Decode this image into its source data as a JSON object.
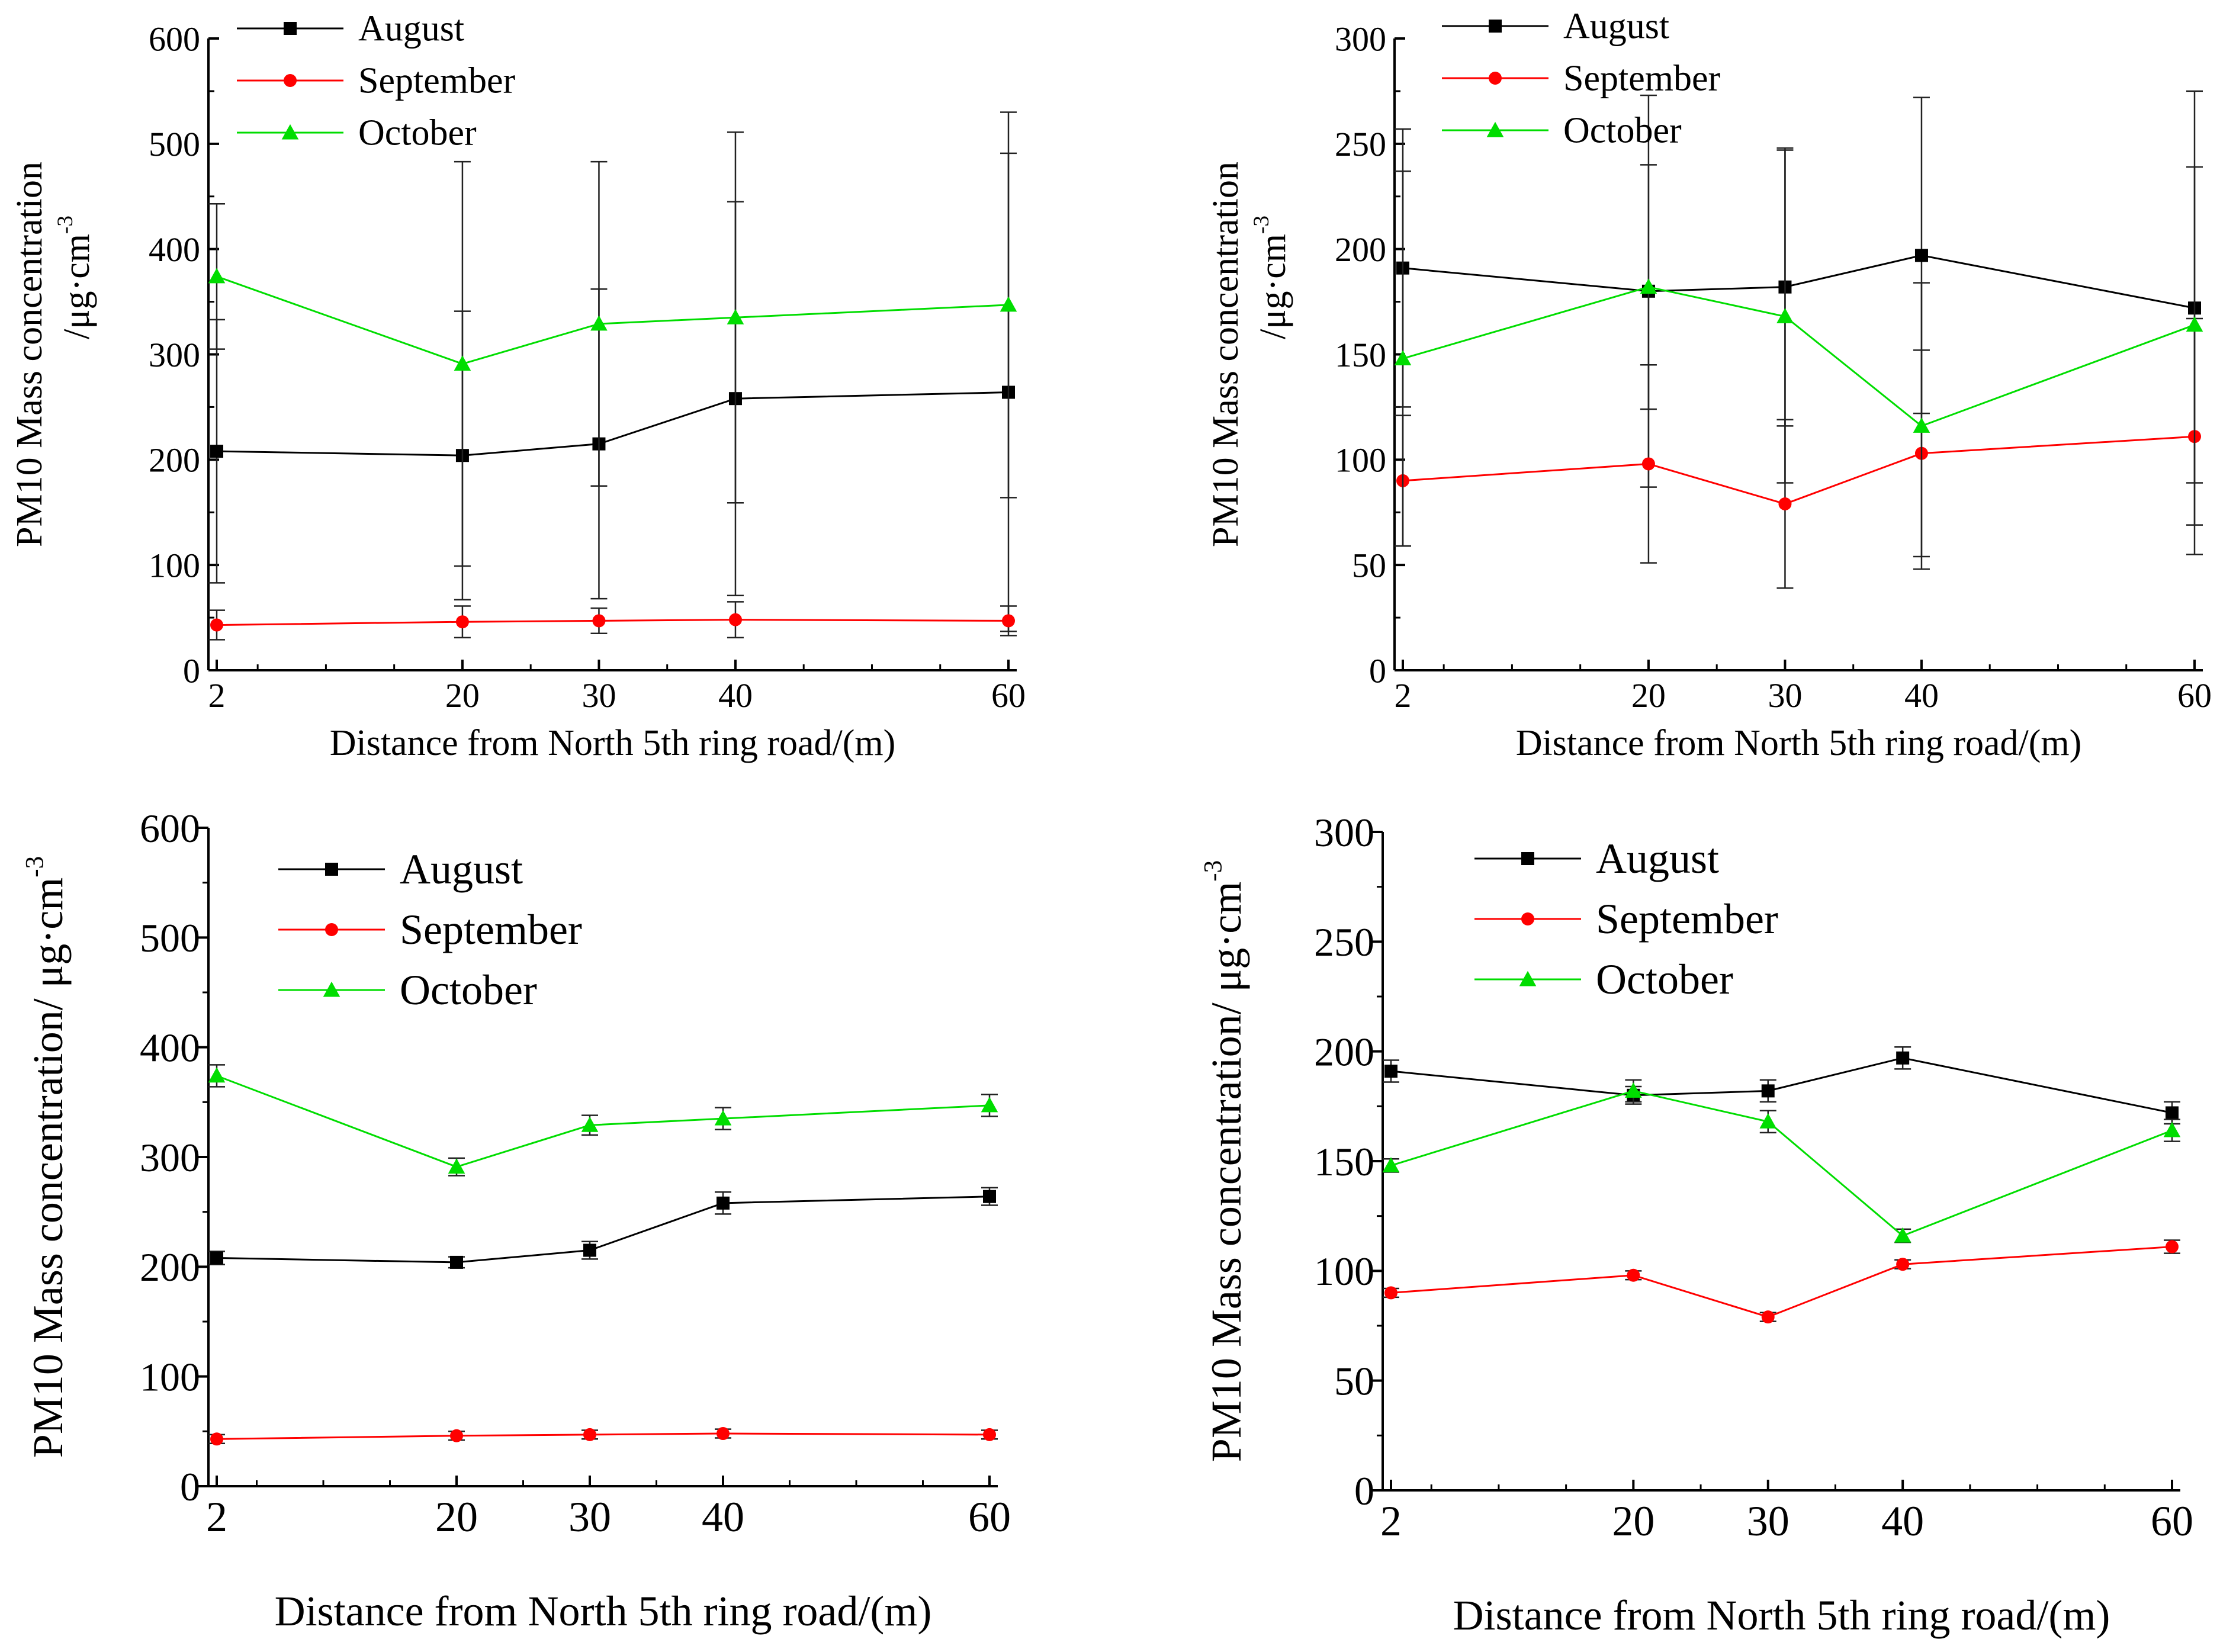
{
  "chart_data": [
    {
      "type": "line",
      "panel": "top-left",
      "x": [
        2,
        20,
        30,
        40,
        60
      ],
      "xlabel": "Distance  from North 5th ring road/(m)",
      "ylabel_line1": "PM10 Mass concentration",
      "ylabel_line2": "/μg·cm",
      "ylabel_sup": "-3",
      "ylim": [
        0,
        600
      ],
      "yticks": [
        0,
        100,
        200,
        300,
        400,
        500,
        600
      ],
      "legend_position": "top-left",
      "series": [
        {
          "name": "August",
          "color": "#000000",
          "marker": "square",
          "values": [
            208,
            204,
            215,
            258,
            264
          ],
          "error": [
            125,
            137,
            147,
            187,
            227
          ]
        },
        {
          "name": "September",
          "color": "#ff0000",
          "marker": "circle",
          "values": [
            43,
            46,
            47,
            48,
            47
          ],
          "error": [
            14,
            15,
            12,
            17,
            14
          ]
        },
        {
          "name": "October",
          "color": "#00dd00",
          "marker": "triangle",
          "values": [
            374,
            291,
            329,
            335,
            347
          ],
          "error": [
            69,
            192,
            154,
            176,
            183
          ]
        }
      ]
    },
    {
      "type": "line",
      "panel": "top-right",
      "x": [
        2,
        20,
        30,
        40,
        60
      ],
      "xlabel": "Distance  from North 5th ring road/(m)",
      "ylabel_line1": "PM10 Mass concentration",
      "ylabel_line2": "/μg·cm",
      "ylabel_sup": "-3",
      "ylim": [
        0,
        300
      ],
      "yticks": [
        0,
        50,
        100,
        150,
        200,
        250,
        300
      ],
      "legend_position": "top-left",
      "series": [
        {
          "name": "August",
          "color": "#000000",
          "marker": "square",
          "values": [
            191,
            180,
            182,
            197,
            172
          ],
          "error": [
            66,
            93,
            66,
            75,
            103
          ]
        },
        {
          "name": "September",
          "color": "#ff0000",
          "marker": "circle",
          "values": [
            90,
            98,
            79,
            103,
            111
          ],
          "error": [
            31,
            47,
            40,
            49,
            56
          ]
        },
        {
          "name": "October",
          "color": "#00dd00",
          "marker": "triangle",
          "values": [
            148,
            182,
            168,
            116,
            164
          ],
          "error": [
            89,
            58,
            79,
            68,
            75
          ]
        }
      ]
    },
    {
      "type": "line",
      "panel": "bottom-left",
      "x": [
        2,
        20,
        30,
        40,
        60
      ],
      "xlabel": "Distance from North 5th ring road/(m)",
      "ylabel_line1": "PM10 Mass concentration/ μg·cm",
      "ylabel_sup": "-3",
      "ylim": [
        0,
        600
      ],
      "yticks": [
        0,
        100,
        200,
        300,
        400,
        500,
        600
      ],
      "legend_position": "top-left",
      "series": [
        {
          "name": "August",
          "color": "#000000",
          "marker": "square",
          "values": [
            208,
            204,
            215,
            258,
            264
          ],
          "error": [
            6,
            5,
            8,
            10,
            8
          ]
        },
        {
          "name": "September",
          "color": "#ff0000",
          "marker": "circle",
          "values": [
            43,
            46,
            47,
            48,
            47
          ],
          "error": [
            4,
            4,
            4,
            4,
            4
          ]
        },
        {
          "name": "October",
          "color": "#00dd00",
          "marker": "triangle",
          "values": [
            374,
            291,
            329,
            335,
            347
          ],
          "error": [
            10,
            8,
            9,
            10,
            10
          ]
        }
      ]
    },
    {
      "type": "line",
      "panel": "bottom-right",
      "x": [
        2,
        20,
        30,
        40,
        60
      ],
      "xlabel": "Distance from North 5th ring road/(m)",
      "ylabel_line1": "PM10 Mass concentration/ μg·cm",
      "ylabel_sup": "-3",
      "ylim": [
        0,
        300
      ],
      "yticks": [
        0,
        50,
        100,
        150,
        200,
        250,
        300
      ],
      "legend_position": "top-left",
      "series": [
        {
          "name": "August",
          "color": "#000000",
          "marker": "square",
          "values": [
            191,
            180,
            182,
            197,
            172
          ],
          "error": [
            5,
            4,
            5,
            5,
            5
          ]
        },
        {
          "name": "September",
          "color": "#ff0000",
          "marker": "circle",
          "values": [
            90,
            98,
            79,
            103,
            111
          ],
          "error": [
            2,
            2,
            2,
            2,
            3
          ]
        },
        {
          "name": "October",
          "color": "#00dd00",
          "marker": "triangle",
          "values": [
            148,
            182,
            168,
            116,
            164
          ],
          "error": [
            3,
            5,
            5,
            3,
            5
          ]
        }
      ]
    }
  ]
}
